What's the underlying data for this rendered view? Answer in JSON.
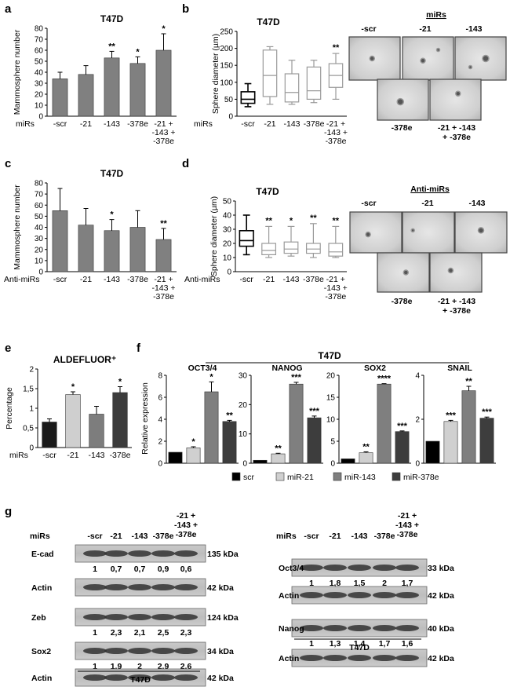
{
  "chart_data": [
    {
      "panel": "a",
      "type": "bar",
      "title": "T47D",
      "ylabel": "Mammosphere number",
      "xlabel": "miRs",
      "ylim": [
        0,
        80
      ],
      "yticks": [
        0,
        10,
        20,
        30,
        40,
        50,
        60,
        70,
        80
      ],
      "categories": [
        "-scr",
        "-21",
        "-143",
        "-378e",
        "-21 +\n-143 +\n-378e"
      ],
      "values": [
        34,
        38,
        53,
        48,
        60
      ],
      "errors": [
        6,
        8,
        6,
        6,
        15
      ],
      "stars": [
        "",
        "",
        "**",
        "*",
        "*"
      ]
    },
    {
      "panel": "b",
      "type": "box",
      "title": "T47D",
      "ylabel": "Sphere diameter (µm)",
      "xlabel": "miRs",
      "ylim": [
        0,
        250
      ],
      "yticks": [
        0,
        50,
        100,
        150,
        200,
        250
      ],
      "categories": [
        "-scr",
        "-21",
        "-143",
        "-378e",
        "-21 +\n-143 +\n-378e"
      ],
      "boxes": [
        {
          "min": 28,
          "q1": 38,
          "median": 50,
          "q3": 72,
          "max": 96
        },
        {
          "min": 35,
          "q1": 58,
          "median": 120,
          "q3": 195,
          "max": 205
        },
        {
          "min": 35,
          "q1": 42,
          "median": 70,
          "q3": 125,
          "max": 165
        },
        {
          "min": 40,
          "q1": 50,
          "median": 75,
          "q3": 145,
          "max": 165
        },
        {
          "min": 50,
          "q1": 85,
          "median": 120,
          "q3": 155,
          "max": 185
        }
      ],
      "stars": [
        "",
        "",
        "",
        "",
        "**"
      ]
    },
    {
      "panel": "c",
      "type": "bar",
      "title": "T47D",
      "ylabel": "Mammosphere number",
      "xlabel": "Anti-miRs",
      "ylim": [
        0,
        80
      ],
      "yticks": [
        0,
        10,
        20,
        30,
        40,
        50,
        60,
        70,
        80
      ],
      "categories": [
        "-scr",
        "-21",
        "-143",
        "-378e",
        "-21 +\n-143 +\n-378e"
      ],
      "values": [
        55,
        42,
        37,
        40,
        29
      ],
      "errors": [
        20,
        15,
        10,
        15,
        10
      ],
      "stars": [
        "",
        "",
        "*",
        "",
        "**"
      ]
    },
    {
      "panel": "d",
      "type": "box",
      "title": "T47D",
      "ylabel": "Sphere diameter (µm)",
      "xlabel": "Anti-miRs",
      "ylim": [
        0,
        50
      ],
      "yticks": [
        0,
        10,
        20,
        30,
        40,
        50
      ],
      "categories": [
        "-scr",
        "-21",
        "-143",
        "-378e",
        "-21 +\n-143 +\n-378e"
      ],
      "boxes": [
        {
          "min": 12,
          "q1": 18,
          "median": 22,
          "q3": 29,
          "max": 40
        },
        {
          "min": 10,
          "q1": 12,
          "median": 15,
          "q3": 20,
          "max": 32
        },
        {
          "min": 11,
          "q1": 13,
          "median": 16,
          "q3": 21,
          "max": 32
        },
        {
          "min": 10,
          "q1": 13,
          "median": 16,
          "q3": 20,
          "max": 34
        },
        {
          "min": 10,
          "q1": 11,
          "median": 14,
          "q3": 20,
          "max": 32
        }
      ],
      "stars": [
        "",
        "**",
        "*",
        "**",
        "**"
      ]
    },
    {
      "panel": "e",
      "type": "bar",
      "title": "ALDEFLUOR⁺",
      "ylabel": "Percentage",
      "xlabel": "miRs",
      "ylim": [
        0,
        2
      ],
      "yticks": [
        0,
        0.5,
        1,
        1.5,
        2
      ],
      "yticklabels": [
        "0",
        "0,5",
        "1",
        "1,5",
        "2"
      ],
      "categories": [
        "-scr",
        "-21",
        "-143",
        "-378e"
      ],
      "values": [
        0.65,
        1.35,
        0.85,
        1.4
      ],
      "errors": [
        0.08,
        0.07,
        0.2,
        0.15
      ],
      "colors": [
        "#1a1a1a",
        "#cfcfcf",
        "#7d7d7d",
        "#3c3c3c"
      ],
      "stars": [
        "",
        "*",
        "",
        "*"
      ]
    },
    {
      "panel": "f",
      "type": "bar",
      "title": "T47D",
      "ylabel": "Relative expression",
      "legend": [
        {
          "name": "scr",
          "color": "#000000"
        },
        {
          "name": "miR-21",
          "color": "#d0d0d0"
        },
        {
          "name": "miR-143",
          "color": "#7f7f7f"
        },
        {
          "name": "miR-378e",
          "color": "#3d3d3d"
        }
      ],
      "subplots": [
        {
          "gene": "OCT3/4",
          "ylim": [
            0,
            8
          ],
          "yticks": [
            0,
            2,
            4,
            6,
            8
          ],
          "values": [
            1,
            1.4,
            6.5,
            3.8
          ],
          "errors": [
            0,
            0.1,
            0.9,
            0.1
          ],
          "stars": [
            "",
            "*",
            "*",
            "**"
          ]
        },
        {
          "gene": "NANOG",
          "ylim": [
            0,
            30
          ],
          "yticks": [
            0,
            10,
            20,
            30
          ],
          "values": [
            1,
            3.2,
            27,
            15.5
          ],
          "errors": [
            0,
            0.2,
            0.6,
            0.6
          ],
          "stars": [
            "",
            "**",
            "***",
            "***"
          ]
        },
        {
          "gene": "SOX2",
          "ylim": [
            0,
            20
          ],
          "yticks": [
            0,
            5,
            10,
            15,
            20
          ],
          "values": [
            1,
            2.4,
            18,
            7.2
          ],
          "errors": [
            0,
            0.2,
            0.1,
            0.15
          ],
          "stars": [
            "",
            "**",
            "****",
            "***"
          ]
        },
        {
          "gene": "SNAIL",
          "ylim": [
            0,
            4
          ],
          "yticks": [
            0,
            2,
            4
          ],
          "values": [
            1,
            1.9,
            3.3,
            2.05
          ],
          "errors": [
            0,
            0.05,
            0.2,
            0.05
          ],
          "stars": [
            "",
            "***",
            "**",
            "***"
          ]
        }
      ]
    }
  ],
  "labels": {
    "a": "a",
    "b": "b",
    "c": "c",
    "d": "d",
    "e": "e",
    "f": "f",
    "g": "g",
    "mirs_title": "miRs",
    "antimirs_title": "Anti-miRs"
  },
  "micrographs": {
    "b_top": [
      "-scr",
      "-21",
      "-143"
    ],
    "b_bottom": [
      "-378e",
      "-21 + -143\n+ -378e"
    ],
    "d_top": [
      "-scr",
      "-21",
      "-143"
    ],
    "d_bottom": [
      "-378e",
      "-21 + -143\n+ -378e"
    ]
  },
  "western": {
    "cell": "T47D",
    "row_label": "miRs",
    "lanes": [
      "-scr",
      "-21",
      "-143",
      "-378e",
      "-21 +\n-143 +\n-378e"
    ],
    "left": [
      {
        "protein": "E-cad",
        "kda": "135 kDa",
        "values": [
          "1",
          "0,7",
          "0,7",
          "0,9",
          "0,6"
        ]
      },
      {
        "protein": "Actin",
        "kda": "42 kDa",
        "values": []
      },
      {
        "protein": "Zeb",
        "kda": "124 kDa",
        "values": [
          "1",
          "2,3",
          "2,1",
          "2,5",
          "2,3"
        ]
      },
      {
        "protein": "Sox2",
        "kda": "34 kDa",
        "values": [
          "1",
          "1,9",
          "2",
          "2,9",
          "2,6"
        ]
      },
      {
        "protein": "Actin",
        "kda": "42 kDa",
        "values": []
      }
    ],
    "right": [
      {
        "protein": "Oct3/4",
        "kda": "33 kDa",
        "values": [
          "1",
          "1,8",
          "1,5",
          "2",
          "1,7"
        ]
      },
      {
        "protein": "Actin",
        "kda": "42 kDa",
        "values": []
      },
      {
        "protein": "Nanog",
        "kda": "40 kDa",
        "values": [
          "1",
          "1,3",
          "1,4",
          "1,7",
          "1,6"
        ]
      },
      {
        "protein": "Actin",
        "kda": "42 kDa",
        "values": []
      }
    ]
  }
}
